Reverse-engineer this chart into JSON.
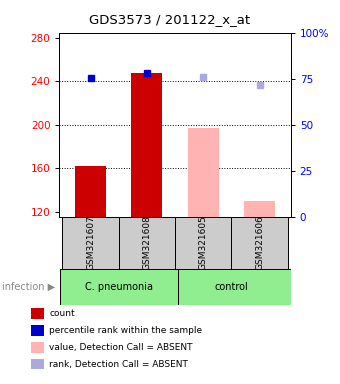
{
  "title": "GDS3573 / 201122_x_at",
  "samples": [
    "GSM321607",
    "GSM321608",
    "GSM321605",
    "GSM321606"
  ],
  "bar_values": [
    162,
    248,
    197,
    130
  ],
  "bar_colors": [
    "#cc0000",
    "#cc0000",
    "#ffb3b3",
    "#ffb3b3"
  ],
  "square_values": [
    243,
    248,
    244,
    237
  ],
  "square_colors": [
    "#0000cc",
    "#0000cc",
    "#aaaadd",
    "#aaaadd"
  ],
  "ylim_left": [
    115,
    285
  ],
  "ylim_right": [
    0,
    100
  ],
  "left_ticks": [
    120,
    160,
    200,
    240,
    280
  ],
  "right_ticks": [
    0,
    25,
    50,
    75,
    100
  ],
  "right_tick_labels": [
    "0",
    "25",
    "50",
    "75",
    "100%"
  ],
  "grid_values": [
    160,
    200,
    240
  ],
  "bar_bottom": 115,
  "legend_items": [
    {
      "label": "count",
      "color": "#cc0000"
    },
    {
      "label": "percentile rank within the sample",
      "color": "#0000cc"
    },
    {
      "label": "value, Detection Call = ABSENT",
      "color": "#ffb3b3"
    },
    {
      "label": "rank, Detection Call = ABSENT",
      "color": "#aaaadd"
    }
  ],
  "sample_box_bg": "#cccccc",
  "group_label_bg": "#90EE90",
  "fig_bg": "#ffffff"
}
